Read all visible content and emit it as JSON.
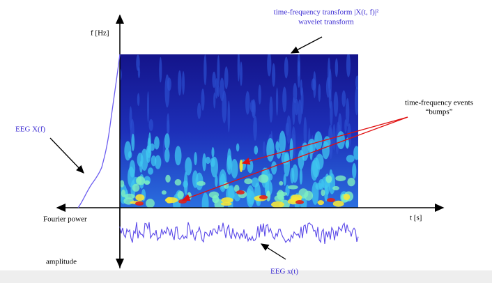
{
  "header": {
    "title": "time-frequency transform |X(t, f)|²",
    "subtitle": "wavelet transform"
  },
  "axes": {
    "frequency": "f [Hz]",
    "time": "t [s]",
    "power": "Fourier power",
    "amplitude": "amplitude"
  },
  "labels": {
    "spectrum": "EEG X(f)",
    "signal": "EEG x(t)",
    "events": "time-frequency events",
    "bumps": "“bumps”"
  }
}
